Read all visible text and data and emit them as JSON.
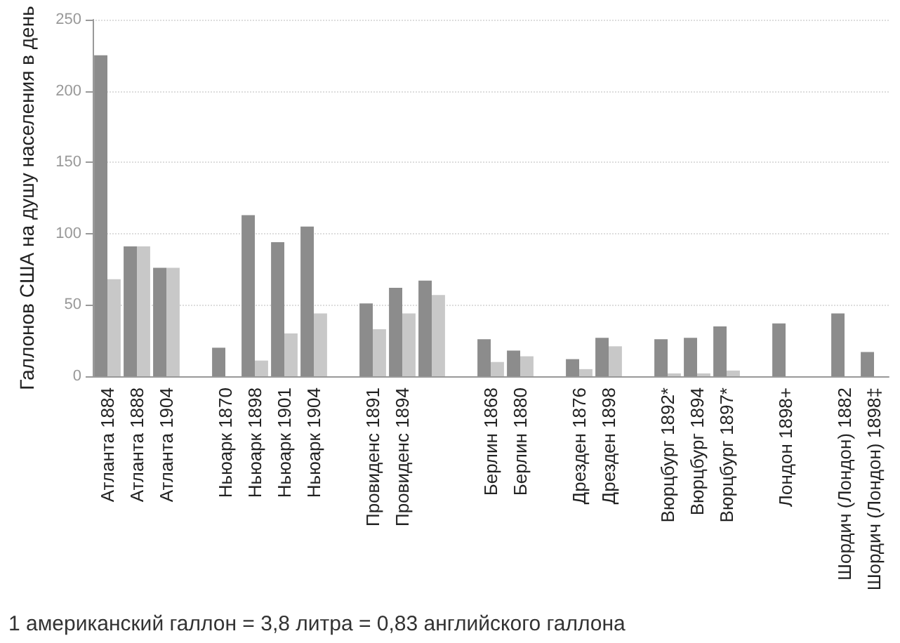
{
  "chart_data": {
    "type": "bar",
    "ylabel": "Галлонов США на душу населения в день",
    "annotations": [
      "1 американский галлон = 3,8 литра = 0,83 английского галлона"
    ],
    "categories": [
      "Атланта 1884",
      "Атланта 1888",
      "Атланта 1904",
      null,
      "Ньюарк 1870",
      "Ньюарк 1898",
      "Ньюарк 1901",
      "Ньюарк 1904",
      null,
      "Провиденс 1891",
      "Провиденс 1894",
      null,
      null,
      "Берлин 1868",
      "Берлин 1880",
      null,
      "Дрезден 1876",
      "Дрезден 1898",
      null,
      "Вюрцбург 1892*",
      "Вюрцбург 1894",
      "Вюрцбург 1897*",
      null,
      "Лондон 1898+",
      null,
      "Шордич (Лондон) 1882",
      "Шордич (Лондон) 1898‡"
    ],
    "series": [
      {
        "color": "#8c8c8c",
        "values": [
          225,
          91,
          76,
          null,
          20,
          113,
          94,
          105,
          null,
          51,
          62,
          67,
          null,
          26,
          18,
          null,
          12,
          27,
          null,
          26,
          27,
          35,
          null,
          37,
          null,
          44,
          17
        ]
      },
      {
        "color": "#c8c8c8",
        "values": [
          68,
          91,
          76,
          null,
          null,
          11,
          30,
          44,
          null,
          33,
          44,
          57,
          null,
          10,
          14,
          null,
          5,
          21,
          null,
          2,
          2,
          4,
          null,
          null,
          null,
          null,
          null
        ]
      }
    ],
    "ylim": [
      0,
      250
    ],
    "yticks": [
      0,
      50,
      100,
      150,
      200,
      250
    ],
    "grid": "y"
  }
}
